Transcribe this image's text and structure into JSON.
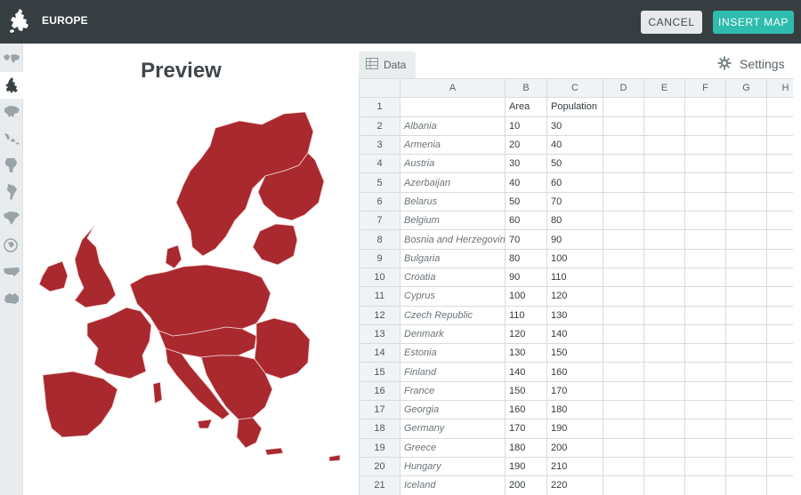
{
  "header": {
    "title": "EUROPE",
    "cancel_label": "CANCEL",
    "insert_label": "INSERT MAP",
    "colors": {
      "bar": "#373e42",
      "accent": "#2dbcae"
    }
  },
  "sidebar": {
    "items": [
      {
        "icon": "world-map-icon"
      },
      {
        "icon": "europe-map-icon",
        "selected": true
      },
      {
        "icon": "asia-map-icon"
      },
      {
        "icon": "southeast-asia-map-icon"
      },
      {
        "icon": "africa-map-icon"
      },
      {
        "icon": "south-america-map-icon"
      },
      {
        "icon": "north-america-map-icon"
      },
      {
        "icon": "oceania-map-icon"
      },
      {
        "icon": "usa-map-icon"
      },
      {
        "icon": "australia-map-icon"
      }
    ]
  },
  "preview": {
    "title": "Preview",
    "map_color": "#a9292f"
  },
  "data_panel": {
    "tab_label": "Data",
    "settings_label": "Settings",
    "columns": [
      "A",
      "B",
      "C",
      "D",
      "E",
      "F",
      "G",
      "H"
    ],
    "rows": [
      {
        "n": "1",
        "a": "",
        "b": "Area",
        "c": "Population"
      },
      {
        "n": "2",
        "a": "Albania",
        "b": "10",
        "c": "30"
      },
      {
        "n": "3",
        "a": "Armenia",
        "b": "20",
        "c": "40"
      },
      {
        "n": "4",
        "a": "Austria",
        "b": "30",
        "c": "50"
      },
      {
        "n": "5",
        "a": "Azerbaijan",
        "b": "40",
        "c": "60"
      },
      {
        "n": "6",
        "a": "Belarus",
        "b": "50",
        "c": "70"
      },
      {
        "n": "7",
        "a": "Belgium",
        "b": "60",
        "c": "80"
      },
      {
        "n": "8",
        "a": "Bosnia and Herzegovina",
        "b": "70",
        "c": "90"
      },
      {
        "n": "9",
        "a": "Bulgaria",
        "b": "80",
        "c": "100"
      },
      {
        "n": "10",
        "a": "Croatia",
        "b": "90",
        "c": "110"
      },
      {
        "n": "11",
        "a": "Cyprus",
        "b": "100",
        "c": "120"
      },
      {
        "n": "12",
        "a": "Czech Republic",
        "b": "110",
        "c": "130"
      },
      {
        "n": "13",
        "a": "Denmark",
        "b": "120",
        "c": "140"
      },
      {
        "n": "14",
        "a": "Estonia",
        "b": "130",
        "c": "150"
      },
      {
        "n": "15",
        "a": "Finland",
        "b": "140",
        "c": "160"
      },
      {
        "n": "16",
        "a": "France",
        "b": "150",
        "c": "170"
      },
      {
        "n": "17",
        "a": "Georgia",
        "b": "160",
        "c": "180"
      },
      {
        "n": "18",
        "a": "Germany",
        "b": "170",
        "c": "190"
      },
      {
        "n": "19",
        "a": "Greece",
        "b": "180",
        "c": "200"
      },
      {
        "n": "20",
        "a": "Hungary",
        "b": "190",
        "c": "210"
      },
      {
        "n": "21",
        "a": "Iceland",
        "b": "200",
        "c": "220"
      }
    ]
  }
}
